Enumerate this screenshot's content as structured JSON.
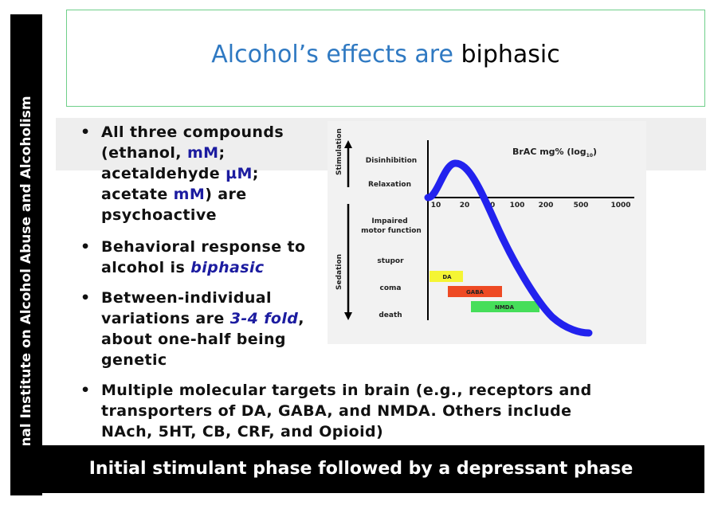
{
  "sidebar": {
    "text": "National Institute on Alcohol Abuse and Alcoholism"
  },
  "title": {
    "accent": "Alcohol’s effects are",
    "plain": "biphasic"
  },
  "bullets": {
    "b1": {
      "l1": "All three compounds",
      "l2a": "(ethanol, ",
      "l2b": "mM",
      "l2c": ";",
      "l3a": "acetaldehyde ",
      "l3b": "µM",
      "l3c": ";",
      "l4a": "acetate ",
      "l4b": "mM",
      "l4c": ") are",
      "l5": "psychoactive"
    },
    "b2": {
      "l1": "Behavioral response to",
      "l2a": "alcohol is ",
      "l2b": "biphasic"
    },
    "b3": {
      "l1": "Between-individual",
      "l2a": "variations are ",
      "l2b": "3-4 fold",
      "l2c": ",",
      "l3": "about one-half being",
      "l4": "genetic"
    },
    "b4": {
      "l1": "Multiple molecular targets in brain (e.g., receptors and",
      "l2": "transporters of DA, GABA, and NMDA.  Others include",
      "l3": "NAch, 5HT, CB, CRF, and Opioid)"
    }
  },
  "figure": {
    "axis_title": "BrAC mg% (log",
    "axis_sub": "10",
    "axis_close": ")",
    "stimulation_label": "Stimulation",
    "sedation_label": "Sedation",
    "rows": {
      "disinhibition": "Disinhibition",
      "relaxation": "Relaxation",
      "impaired1": "Impaired",
      "impaired2": "motor function",
      "stupor": "stupor",
      "coma": "coma",
      "death": "death"
    },
    "ticks": [
      "10",
      "20",
      "50",
      "100",
      "200",
      "500",
      "1000"
    ],
    "bars": [
      {
        "label": "DA",
        "color": "#f5f534"
      },
      {
        "label": "GABA",
        "color": "#ee4a24"
      },
      {
        "label": "NMDA",
        "color": "#46de5a"
      }
    ],
    "curve_color": "#2222ee"
  },
  "footer": {
    "text": "Initial stimulant phase followed by a depressant phase"
  }
}
